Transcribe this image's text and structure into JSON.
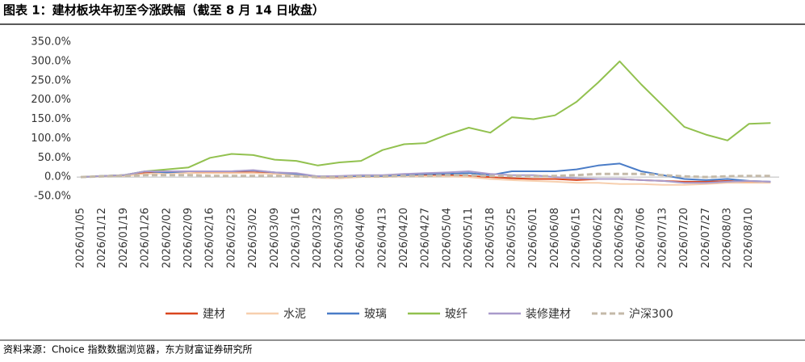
{
  "header": {
    "title": "图表 1：建材板块年初至今涨跌幅（截至 8 月 14 日收盘）"
  },
  "footer": {
    "source": "资料来源：Choice 指数数据浏览器，东方财富证券研究所"
  },
  "chart_data": {
    "type": "line",
    "categories": [
      "2026/01/05",
      "2026/01/12",
      "2026/01/19",
      "2026/01/26",
      "2026/02/02",
      "2026/02/09",
      "2026/02/16",
      "2026/02/23",
      "2026/03/02",
      "2026/03/09",
      "2026/03/16",
      "2026/03/23",
      "2026/03/30",
      "2026/04/06",
      "2026/04/13",
      "2026/04/20",
      "2026/04/27",
      "2026/05/04",
      "2026/05/11",
      "2026/05/18",
      "2026/05/25",
      "2026/06/01",
      "2026/06/08",
      "2026/06/15",
      "2026/06/22",
      "2026/06/29",
      "2026/07/06",
      "2026/07/13",
      "2026/07/20",
      "2026/07/27",
      "2026/08/03",
      "2026/08/10",
      null
    ],
    "ylim": [
      -50,
      350
    ],
    "yticks": [
      {
        "value": -50,
        "label": "-50.0%"
      },
      {
        "value": 0,
        "label": "0.0%"
      },
      {
        "value": 50,
        "label": "50.0%"
      },
      {
        "value": 100,
        "label": "100.0%"
      },
      {
        "value": 150,
        "label": "150.0%"
      },
      {
        "value": 200,
        "label": "200.0%"
      },
      {
        "value": 250,
        "label": "250.0%"
      },
      {
        "value": 300,
        "label": "300.0%"
      },
      {
        "value": 350,
        "label": "350.0%"
      }
    ],
    "series": [
      {
        "name": "建材",
        "color": "#d9461f",
        "dash": false,
        "values": [
          0,
          3,
          5,
          10,
          12,
          15,
          12,
          13,
          12,
          10,
          8,
          0,
          0,
          2,
          3,
          5,
          5,
          5,
          3,
          0,
          -3,
          -5,
          -5,
          -8,
          -5,
          -5,
          -8,
          -10,
          -12,
          -12,
          -10,
          -12,
          -13
        ]
      },
      {
        "name": "水泥",
        "color": "#f7cfae",
        "dash": false,
        "values": [
          0,
          2,
          3,
          8,
          10,
          10,
          10,
          10,
          10,
          8,
          5,
          -2,
          -3,
          0,
          0,
          2,
          2,
          2,
          0,
          -5,
          -8,
          -10,
          -12,
          -15,
          -15,
          -18,
          -18,
          -20,
          -20,
          -18,
          -15,
          -15,
          -15
        ]
      },
      {
        "name": "玻璃",
        "color": "#4a7cc7",
        "dash": false,
        "values": [
          0,
          3,
          5,
          15,
          12,
          15,
          15,
          15,
          17,
          12,
          8,
          2,
          2,
          3,
          3,
          5,
          8,
          8,
          10,
          5,
          15,
          15,
          15,
          20,
          30,
          35,
          15,
          5,
          -5,
          -8,
          -5,
          -10,
          -12
        ]
      },
      {
        "name": "玻纤",
        "color": "#92c14f",
        "dash": false,
        "values": [
          0,
          3,
          5,
          15,
          20,
          25,
          50,
          60,
          57,
          45,
          42,
          30,
          38,
          42,
          70,
          85,
          88,
          110,
          128,
          115,
          155,
          150,
          160,
          195,
          245,
          300,
          240,
          185,
          130,
          110,
          95,
          138,
          140
        ]
      },
      {
        "name": "装修建材",
        "color": "#a99bcb",
        "dash": false,
        "values": [
          0,
          3,
          5,
          15,
          15,
          15,
          15,
          15,
          18,
          12,
          10,
          2,
          3,
          5,
          5,
          8,
          10,
          12,
          15,
          8,
          5,
          5,
          0,
          -3,
          -5,
          -5,
          -8,
          -10,
          -15,
          -15,
          -12,
          -10,
          -12
        ]
      },
      {
        "name": "沪深300",
        "color": "#c4baa9",
        "dash": true,
        "values": [
          0,
          2,
          3,
          5,
          5,
          5,
          3,
          3,
          3,
          3,
          2,
          0,
          0,
          2,
          2,
          3,
          3,
          5,
          5,
          3,
          3,
          2,
          3,
          5,
          8,
          8,
          8,
          5,
          2,
          0,
          2,
          3,
          3
        ]
      }
    ]
  }
}
